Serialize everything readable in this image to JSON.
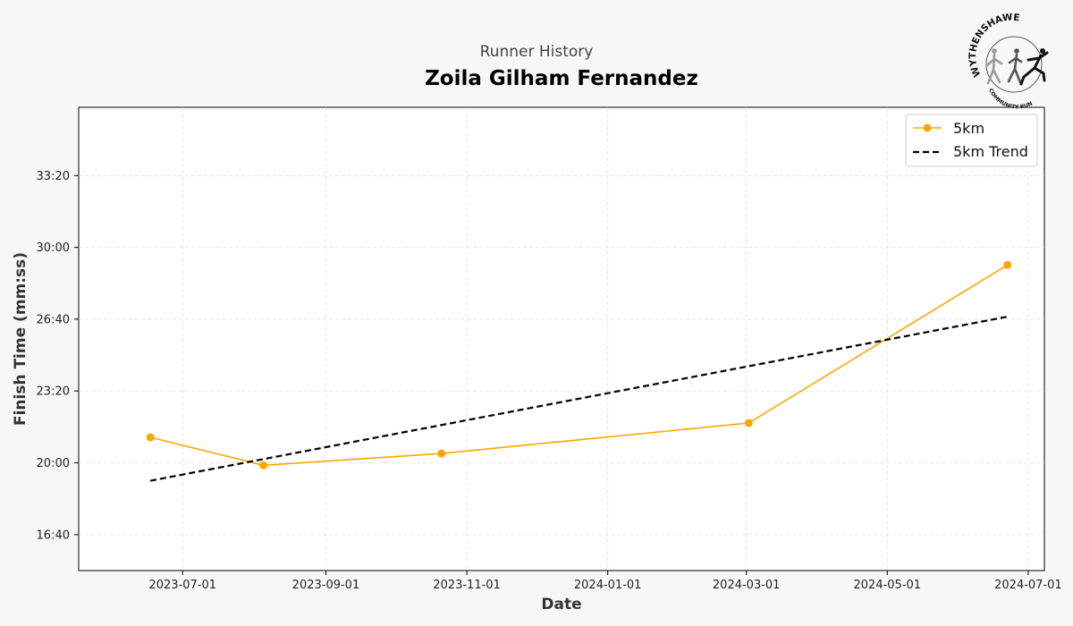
{
  "chart_data": {
    "type": "line",
    "suptitle": "Runner History",
    "title": "Zoila Gilham Fernandez",
    "xlabel": "Date",
    "ylabel": "Finish Time (mm:ss)",
    "x_axis_type": "date",
    "xlim": [
      "2023-05-17",
      "2024-07-08"
    ],
    "ylim_seconds": [
      900,
      2190
    ],
    "x_ticks": [
      "2023-07-01",
      "2023-09-01",
      "2023-11-01",
      "2024-01-01",
      "2024-03-01",
      "2024-05-01",
      "2024-07-01"
    ],
    "y_ticks_seconds": [
      1000,
      1200,
      1400,
      1600,
      1800,
      2000
    ],
    "y_tick_labels": [
      "16:40",
      "20:00",
      "23:20",
      "26:40",
      "30:00",
      "33:20"
    ],
    "grid": true,
    "legend_position": "top-right",
    "series": [
      {
        "name": "5km",
        "style": "solid-with-markers",
        "color": "#FFA500",
        "x": [
          "2023-06-17",
          "2023-08-05",
          "2023-10-21",
          "2024-03-02",
          "2024-06-22"
        ],
        "y_seconds": [
          1271,
          1193,
          1226,
          1311,
          1751
        ]
      },
      {
        "name": "5km Trend",
        "style": "dashed",
        "color": "#000000",
        "x": [
          "2023-06-17",
          "2024-06-22"
        ],
        "y_seconds": [
          1150,
          1607
        ]
      }
    ]
  },
  "logo": {
    "top_text": "WYTHENSHAWE",
    "bottom_text": "COMMUNITY RUN"
  }
}
